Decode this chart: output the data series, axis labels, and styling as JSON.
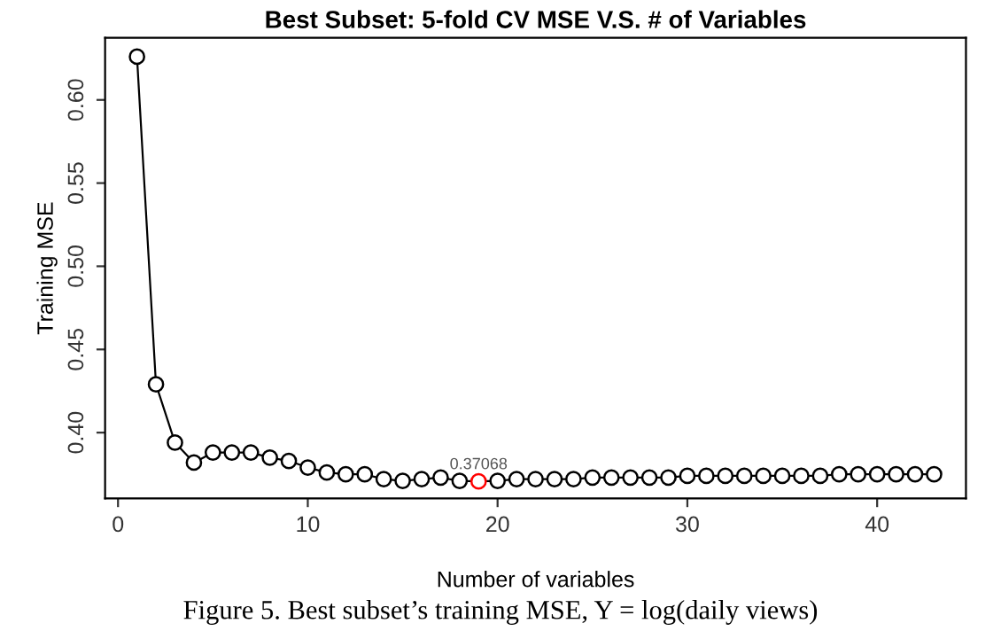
{
  "chart_data": {
    "type": "line",
    "title": "Best Subset: 5-fold CV MSE V.S. # of Variables",
    "xlabel": "Number of variables",
    "ylabel": "Training MSE",
    "x": [
      1,
      2,
      3,
      4,
      5,
      6,
      7,
      8,
      9,
      10,
      11,
      12,
      13,
      14,
      15,
      16,
      17,
      18,
      19,
      20,
      21,
      22,
      23,
      24,
      25,
      26,
      27,
      28,
      29,
      30,
      31,
      32,
      33,
      34,
      35,
      36,
      37,
      38,
      39,
      40,
      41,
      42,
      43
    ],
    "series": [
      {
        "color": "#000000",
        "colors": [
          "#000000",
          "#000000",
          "#000000",
          "#000000",
          "#000000",
          "#000000",
          "#000000",
          "#000000",
          "#000000",
          "#000000",
          "#000000",
          "#000000",
          "#000000",
          "#000000",
          "#000000",
          "#000000",
          "#000000",
          "#000000",
          "#ff0000",
          "#000000",
          "#000000",
          "#000000",
          "#000000",
          "#000000",
          "#000000",
          "#000000",
          "#000000",
          "#000000",
          "#000000",
          "#000000",
          "#000000",
          "#000000",
          "#000000",
          "#000000",
          "#000000",
          "#000000",
          "#000000",
          "#000000",
          "#000000",
          "#000000",
          "#000000",
          "#000000",
          "#000000"
        ],
        "values": [
          0.626,
          0.429,
          0.394,
          0.382,
          0.388,
          0.388,
          0.388,
          0.385,
          0.383,
          0.379,
          0.376,
          0.375,
          0.375,
          0.372,
          0.371,
          0.372,
          0.373,
          0.371,
          0.37068,
          0.371,
          0.372,
          0.372,
          0.372,
          0.372,
          0.373,
          0.373,
          0.373,
          0.373,
          0.373,
          0.374,
          0.374,
          0.374,
          0.374,
          0.374,
          0.374,
          0.374,
          0.374,
          0.375,
          0.375,
          0.375,
          0.375,
          0.375,
          0.375
        ]
      }
    ],
    "annotations": [
      {
        "text": "0.37068",
        "x": 19,
        "y": 0.37068
      },
      "Figure 5. Best subset’s training MSE, Y = log(daily views)"
    ],
    "xlim": [
      -0.68,
      44.68
    ],
    "ylim": [
      0.3604,
      0.6373
    ],
    "xticks": [
      0,
      10,
      20,
      30,
      40
    ],
    "yticks": [
      {
        "value": 0.4,
        "label": "0.40"
      },
      0.45,
      {
        "value": 0.5,
        "label": "0.50"
      },
      0.55,
      {
        "value": 0.6,
        "label": "0.60"
      }
    ],
    "marker": "circle",
    "line_style": "solid",
    "grid": false,
    "legend": false
  }
}
